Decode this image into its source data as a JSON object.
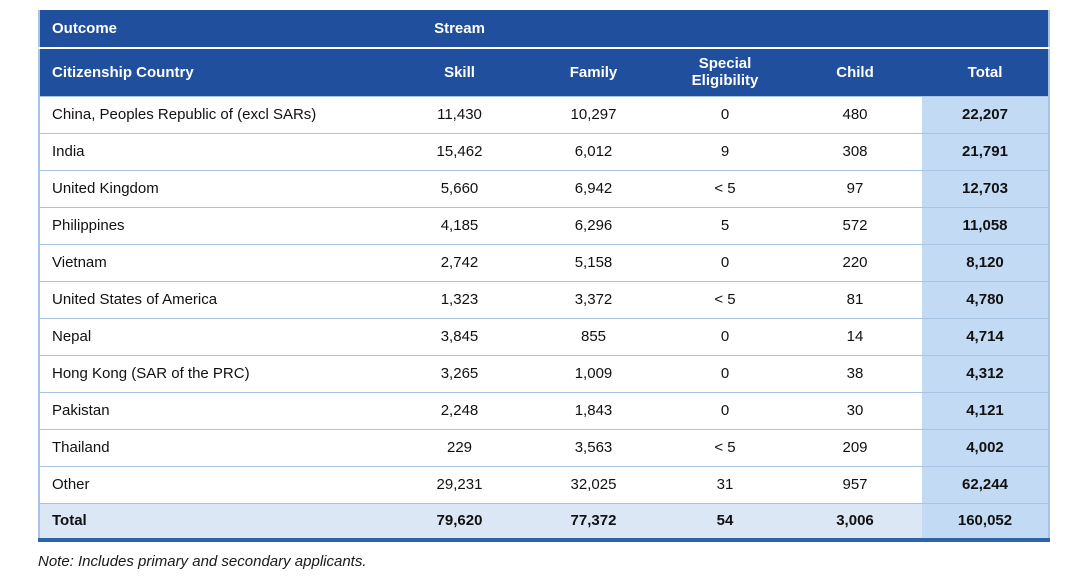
{
  "table": {
    "header_row1": {
      "outcome": "Outcome",
      "stream": "Stream"
    },
    "columns": [
      {
        "key": "country",
        "label": "Citizenship Country"
      },
      {
        "key": "skill",
        "label": "Skill"
      },
      {
        "key": "family",
        "label": "Family"
      },
      {
        "key": "special",
        "label": "Special Eligibility"
      },
      {
        "key": "child",
        "label": "Child"
      },
      {
        "key": "total",
        "label": "Total"
      }
    ],
    "rows": [
      {
        "country": "China, Peoples Republic of (excl SARs)",
        "skill": "11,430",
        "family": "10,297",
        "special": "0",
        "child": "480",
        "total": "22,207"
      },
      {
        "country": "India",
        "skill": "15,462",
        "family": "6,012",
        "special": "9",
        "child": "308",
        "total": "21,791"
      },
      {
        "country": "United Kingdom",
        "skill": "5,660",
        "family": "6,942",
        "special": "< 5",
        "child": "97",
        "total": "12,703"
      },
      {
        "country": "Philippines",
        "skill": "4,185",
        "family": "6,296",
        "special": "5",
        "child": "572",
        "total": "11,058"
      },
      {
        "country": "Vietnam",
        "skill": "2,742",
        "family": "5,158",
        "special": "0",
        "child": "220",
        "total": "8,120"
      },
      {
        "country": "United States of America",
        "skill": "1,323",
        "family": "3,372",
        "special": "< 5",
        "child": "81",
        "total": "4,780"
      },
      {
        "country": "Nepal",
        "skill": "3,845",
        "family": "855",
        "special": "0",
        "child": "14",
        "total": "4,714"
      },
      {
        "country": "Hong Kong (SAR of the PRC)",
        "skill": "3,265",
        "family": "1,009",
        "special": "0",
        "child": "38",
        "total": "4,312"
      },
      {
        "country": "Pakistan",
        "skill": "2,248",
        "family": "1,843",
        "special": "0",
        "child": "30",
        "total": "4,121"
      },
      {
        "country": "Thailand",
        "skill": "229",
        "family": "3,563",
        "special": "< 5",
        "child": "209",
        "total": "4,002"
      },
      {
        "country": "Other",
        "skill": "29,231",
        "family": "32,025",
        "special": "31",
        "child": "957",
        "total": "62,244"
      }
    ],
    "total_row": {
      "country": "Total",
      "skill": "79,620",
      "family": "77,372",
      "special": "54",
      "child": "3,006",
      "total": "160,052"
    }
  },
  "note": "Note: Includes primary and secondary applicants.",
  "colors": {
    "header_bg": "#1f4f9d",
    "header_text": "#ffffff",
    "total_column_bg": "#c2daf4",
    "total_row_bg": "#dce7f5",
    "row_divider": "#a8c4e4",
    "bottom_border": "#2f63a7"
  }
}
